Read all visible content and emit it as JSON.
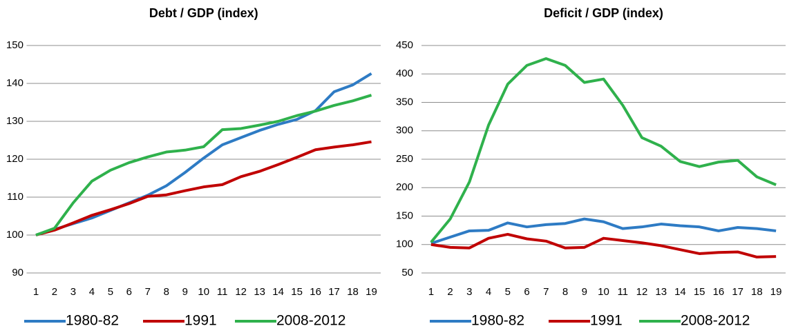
{
  "chart_data": [
    {
      "type": "line",
      "title": "Debt / GDP (index)",
      "categories": [
        "1",
        "2",
        "3",
        "4",
        "5",
        "6",
        "7",
        "8",
        "9",
        "10",
        "11",
        "12",
        "13",
        "14",
        "15",
        "16",
        "17",
        "18",
        "19"
      ],
      "ylim": [
        90,
        150
      ],
      "yticks": [
        90,
        100,
        110,
        120,
        130,
        140,
        150
      ],
      "grid": true,
      "legend": "bottom",
      "series": [
        {
          "name": "1980-82",
          "color": "#2e7bc4",
          "values": [
            100,
            101.5,
            103,
            104.5,
            106.5,
            108.5,
            110.5,
            113,
            116.5,
            120.3,
            123.8,
            125.7,
            127.6,
            129.2,
            130.5,
            132.8,
            137.8,
            139.6,
            142.6
          ]
        },
        {
          "name": "1991",
          "color": "#c00000",
          "values": [
            100,
            101.3,
            103.2,
            105.2,
            106.7,
            108.3,
            110.2,
            110.6,
            111.7,
            112.7,
            113.3,
            115.4,
            116.8,
            118.6,
            120.5,
            122.5,
            123.2,
            123.8,
            124.6
          ]
        },
        {
          "name": "2008-2012",
          "color": "#2fb14c",
          "values": [
            100,
            101.8,
            108.5,
            114.2,
            117.1,
            119.1,
            120.6,
            121.9,
            122.4,
            123.3,
            127.8,
            128.1,
            129,
            130,
            131.5,
            132.7,
            134.2,
            135.4,
            136.9
          ]
        }
      ]
    },
    {
      "type": "line",
      "title": "Deficit / GDP (index)",
      "categories": [
        "1",
        "2",
        "3",
        "4",
        "5",
        "6",
        "7",
        "8",
        "9",
        "10",
        "11",
        "12",
        "13",
        "14",
        "15",
        "16",
        "17",
        "18",
        "19"
      ],
      "ylim": [
        50,
        450
      ],
      "yticks": [
        50,
        100,
        150,
        200,
        250,
        300,
        350,
        400,
        450
      ],
      "grid": true,
      "legend": "bottom",
      "series": [
        {
          "name": "1980-82",
          "color": "#2e7bc4",
          "values": [
            102,
            113,
            124,
            125,
            138,
            131,
            135,
            137,
            145,
            140,
            128,
            131,
            136,
            133,
            131,
            124,
            130,
            128,
            124
          ]
        },
        {
          "name": "1991",
          "color": "#c00000",
          "values": [
            100,
            95,
            94,
            111,
            118,
            110,
            106,
            94,
            95,
            111,
            107,
            103,
            98,
            91,
            84,
            86,
            87,
            78,
            79
          ]
        },
        {
          "name": "2008-2012",
          "color": "#2fb14c",
          "values": [
            104,
            145,
            210,
            310,
            382,
            415,
            427,
            415,
            385,
            391,
            345,
            288,
            273,
            246,
            237,
            245,
            248,
            219,
            205
          ]
        }
      ]
    }
  ]
}
